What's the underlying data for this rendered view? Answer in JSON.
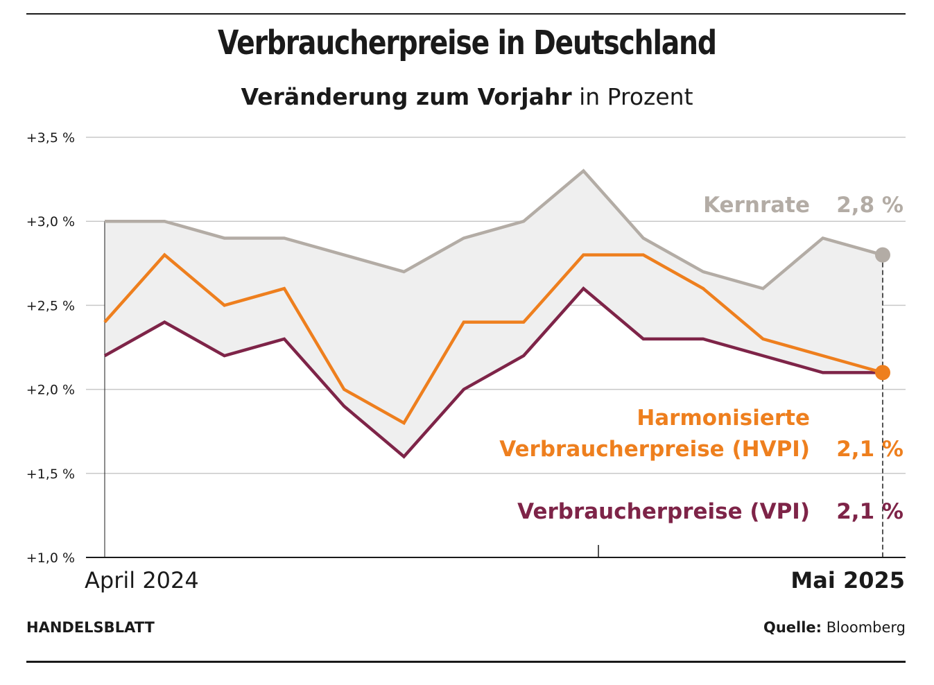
{
  "title": "Verbraucherpreise in Deutschland",
  "subtitle_bold": "Veränderung zum Vorjahr",
  "subtitle_rest": " in Prozent",
  "publisher": "HANDELSBLATT",
  "source_label": "Quelle:",
  "source_name": " Bloomberg",
  "colors": {
    "kernrate": "#b3aca5",
    "hvpi": "#ee7f1e",
    "vpi": "#7e2448",
    "band": "#efefef",
    "grid": "#c8c8c8",
    "axis": "#1a1a1a"
  },
  "chart_data": {
    "type": "line",
    "title": "Verbraucherpreise in Deutschland",
    "subtitle": "Veränderung zum Vorjahr in Prozent",
    "x_start_label": "April 2024",
    "x_end_label": "Mai 2025",
    "ylim": [
      1.0,
      3.5
    ],
    "yticks": [
      {
        "value": 3.5,
        "label": "+3,5 %"
      },
      {
        "value": 3.0,
        "label": "+3,0 %"
      },
      {
        "value": 2.5,
        "label": "+2,5 %"
      },
      {
        "value": 2.0,
        "label": "+2,0 %"
      },
      {
        "value": 1.5,
        "label": "+1,5 %"
      },
      {
        "value": 1.0,
        "label": "+1,0 %"
      }
    ],
    "grid": true,
    "months": 14,
    "series": [
      {
        "key": "kernrate",
        "name": "Kernrate",
        "label_lines": [
          "Kernrate"
        ],
        "last_value_label": "2,8 %",
        "values": [
          3.0,
          3.0,
          2.9,
          2.9,
          2.8,
          2.7,
          2.9,
          3.0,
          3.3,
          2.9,
          2.7,
          2.6,
          2.9,
          2.8
        ]
      },
      {
        "key": "hvpi",
        "name": "Harmonisierte Verbraucherpreise (HVPI)",
        "label_lines": [
          "Harmonisierte",
          "Verbraucherpreise (HVPI)"
        ],
        "last_value_label": "2,1 %",
        "values": [
          2.4,
          2.8,
          2.5,
          2.6,
          2.0,
          1.8,
          2.4,
          2.4,
          2.8,
          2.8,
          2.6,
          2.3,
          2.2,
          2.1
        ]
      },
      {
        "key": "vpi",
        "name": "Verbraucherpreise (VPI)",
        "label_lines": [
          "Verbraucherpreise (VPI)"
        ],
        "last_value_label": "2,1 %",
        "values": [
          2.2,
          2.4,
          2.2,
          2.3,
          1.9,
          1.6,
          2.0,
          2.2,
          2.6,
          2.3,
          2.3,
          2.2,
          2.1,
          2.1
        ]
      }
    ]
  }
}
